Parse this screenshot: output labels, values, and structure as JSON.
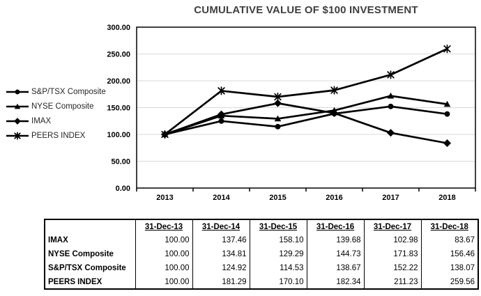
{
  "chart_data": {
    "type": "line",
    "title": "CUMULATIVE VALUE OF $100 INVESTMENT",
    "categories": [
      "2013",
      "2014",
      "2015",
      "2016",
      "2017",
      "2018"
    ],
    "series": [
      {
        "name": "S&P/TSX Composite",
        "marker": "circle",
        "values": [
          100.0,
          124.92,
          114.53,
          138.67,
          152.22,
          138.07
        ]
      },
      {
        "name": "NYSE Composite",
        "marker": "triangle",
        "values": [
          100.0,
          134.81,
          129.29,
          144.73,
          171.83,
          156.46
        ]
      },
      {
        "name": "IMAX",
        "marker": "diamond",
        "values": [
          100.0,
          137.46,
          158.1,
          139.68,
          102.98,
          83.67
        ]
      },
      {
        "name": "PEERS INDEX",
        "marker": "asterisk",
        "values": [
          100.0,
          181.29,
          170.1,
          182.34,
          211.23,
          259.56
        ]
      }
    ],
    "ylim": [
      0,
      300
    ],
    "ytick_step": 50,
    "ytick_labels": [
      "0.00",
      "50.00",
      "100.00",
      "150.00",
      "200.00",
      "250.00",
      "300.00"
    ],
    "grid": true,
    "legend_position": "left",
    "line_color": "#000000"
  },
  "colors": {
    "title": "#3f3f3f",
    "line": "#000000",
    "grid": "#d9d9d9",
    "axis": "#000000"
  },
  "table": {
    "columns": [
      "",
      "31-Dec-13",
      "31-Dec-14",
      "31-Dec-15",
      "31-Dec-16",
      "31-Dec-17",
      "31-Dec-18"
    ],
    "rows": [
      {
        "label": "IMAX",
        "values": [
          "100.00",
          "137.46",
          "158.10",
          "139.68",
          "102.98",
          "83.67"
        ]
      },
      {
        "label": "NYSE Composite",
        "values": [
          "100.00",
          "134.81",
          "129.29",
          "144.73",
          "171.83",
          "156.46"
        ]
      },
      {
        "label": "S&P/TSX Composite",
        "values": [
          "100.00",
          "124.92",
          "114.53",
          "138.67",
          "152.22",
          "138.07"
        ]
      },
      {
        "label": "PEERS INDEX",
        "values": [
          "100.00",
          "181.29",
          "170.10",
          "182.34",
          "211.23",
          "259.56"
        ]
      }
    ]
  }
}
